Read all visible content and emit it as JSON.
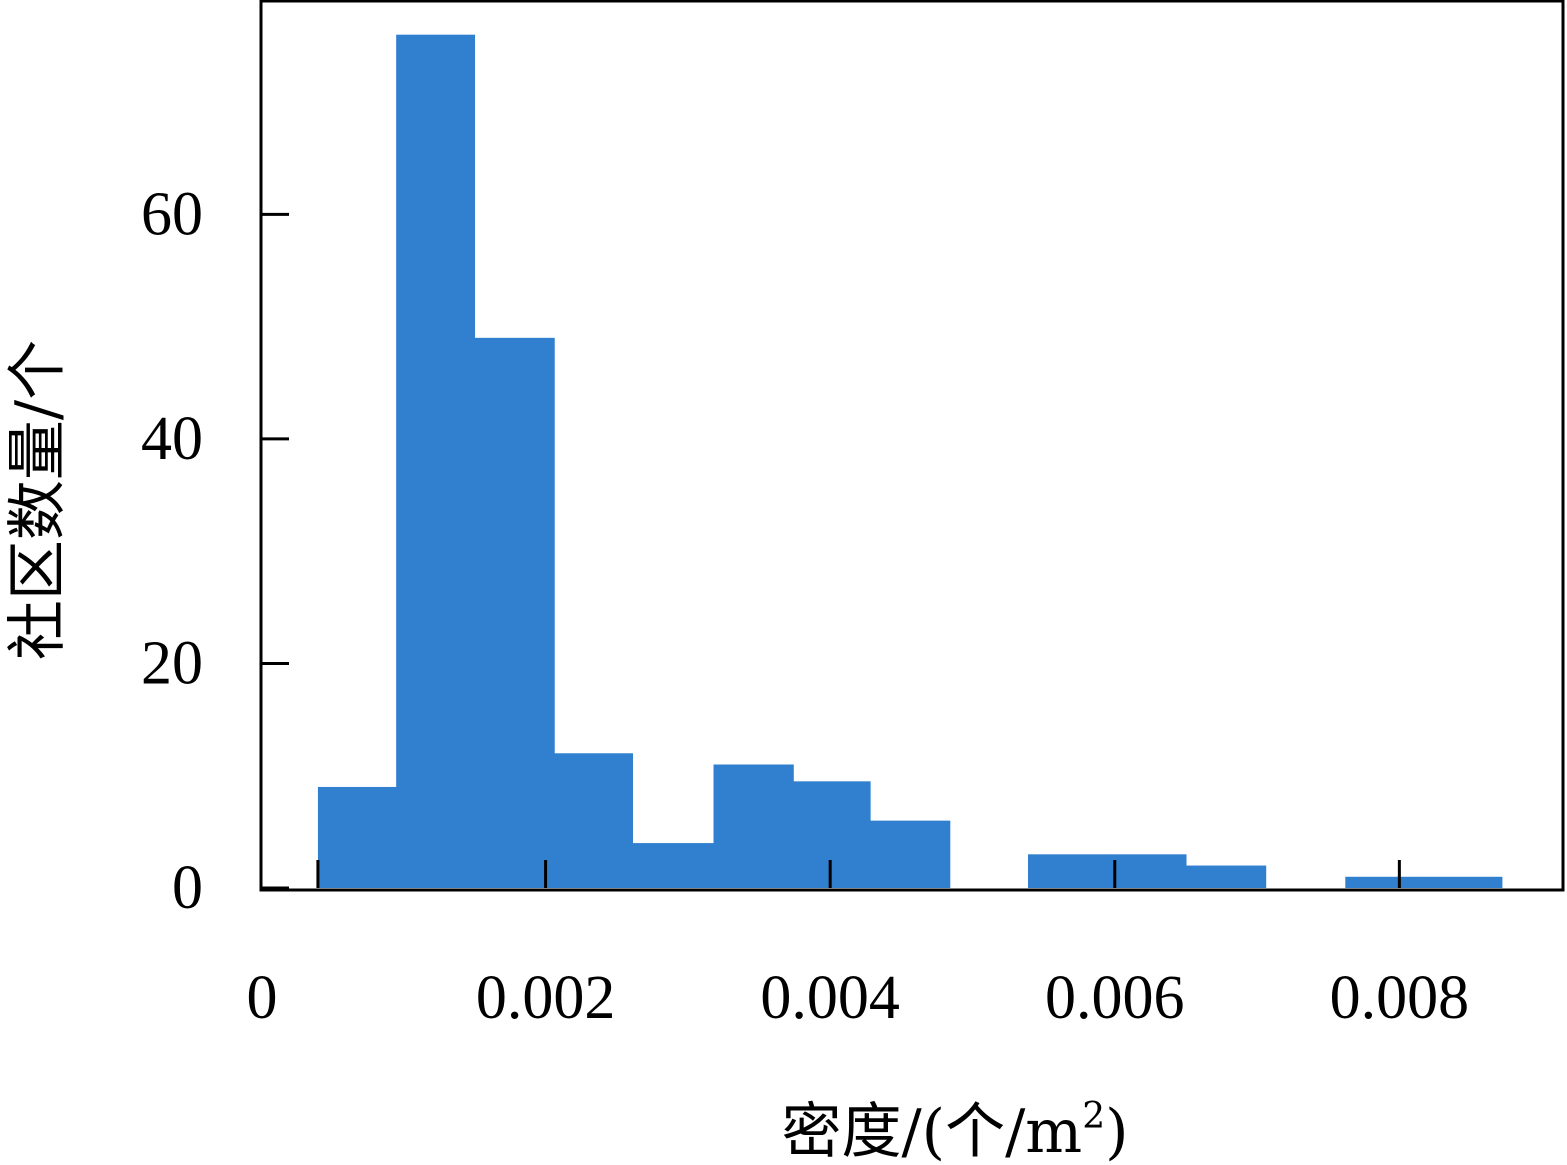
{
  "chart_data": {
    "type": "bar",
    "title": "",
    "xlabel": "密度/(个/m",
    "xlabel_sup": "2",
    "xlabel_close": ")",
    "ylabel": "社区数量/个",
    "bins": [
      {
        "x0": 0.0004,
        "x1": 0.00095,
        "count": 9
      },
      {
        "x0": 0.00095,
        "x1": 0.0015,
        "count": 76
      },
      {
        "x0": 0.0015,
        "x1": 0.00206,
        "count": 49
      },
      {
        "x0": 0.00206,
        "x1": 0.00261,
        "count": 12
      },
      {
        "x0": 0.00261,
        "x1": 0.00318,
        "count": 4
      },
      {
        "x0": 0.00318,
        "x1": 0.00374,
        "count": 11
      },
      {
        "x0": 0.00374,
        "x1": 0.00428,
        "count": 9.5
      },
      {
        "x0": 0.00428,
        "x1": 0.00484,
        "count": 6
      },
      {
        "x0": 0.00484,
        "x1": 0.00539,
        "count": 0
      },
      {
        "x0": 0.00539,
        "x1": 0.00595,
        "count": 3
      },
      {
        "x0": 0.00595,
        "x1": 0.0065,
        "count": 3
      },
      {
        "x0": 0.0065,
        "x1": 0.00706,
        "count": 2
      },
      {
        "x0": 0.00706,
        "x1": 0.00762,
        "count": 0
      },
      {
        "x0": 0.00762,
        "x1": 0.00817,
        "count": 1
      },
      {
        "x0": 0.00817,
        "x1": 0.00872,
        "count": 1
      }
    ],
    "xticks": [
      0.0004,
      0.002,
      0.004,
      0.006,
      0.008
    ],
    "xtick_labels": [
      "0.002",
      "0.004",
      "0.006",
      "0.008"
    ],
    "x_origin_label": "0",
    "yticks": [
      0,
      20,
      40,
      60
    ],
    "ytick_labels": [
      "0",
      "20",
      "40",
      "60"
    ],
    "xlim": [
      0,
      0.00915
    ],
    "ylim": [
      0,
      79
    ],
    "grid": false,
    "bar_color": "#3080cf"
  }
}
